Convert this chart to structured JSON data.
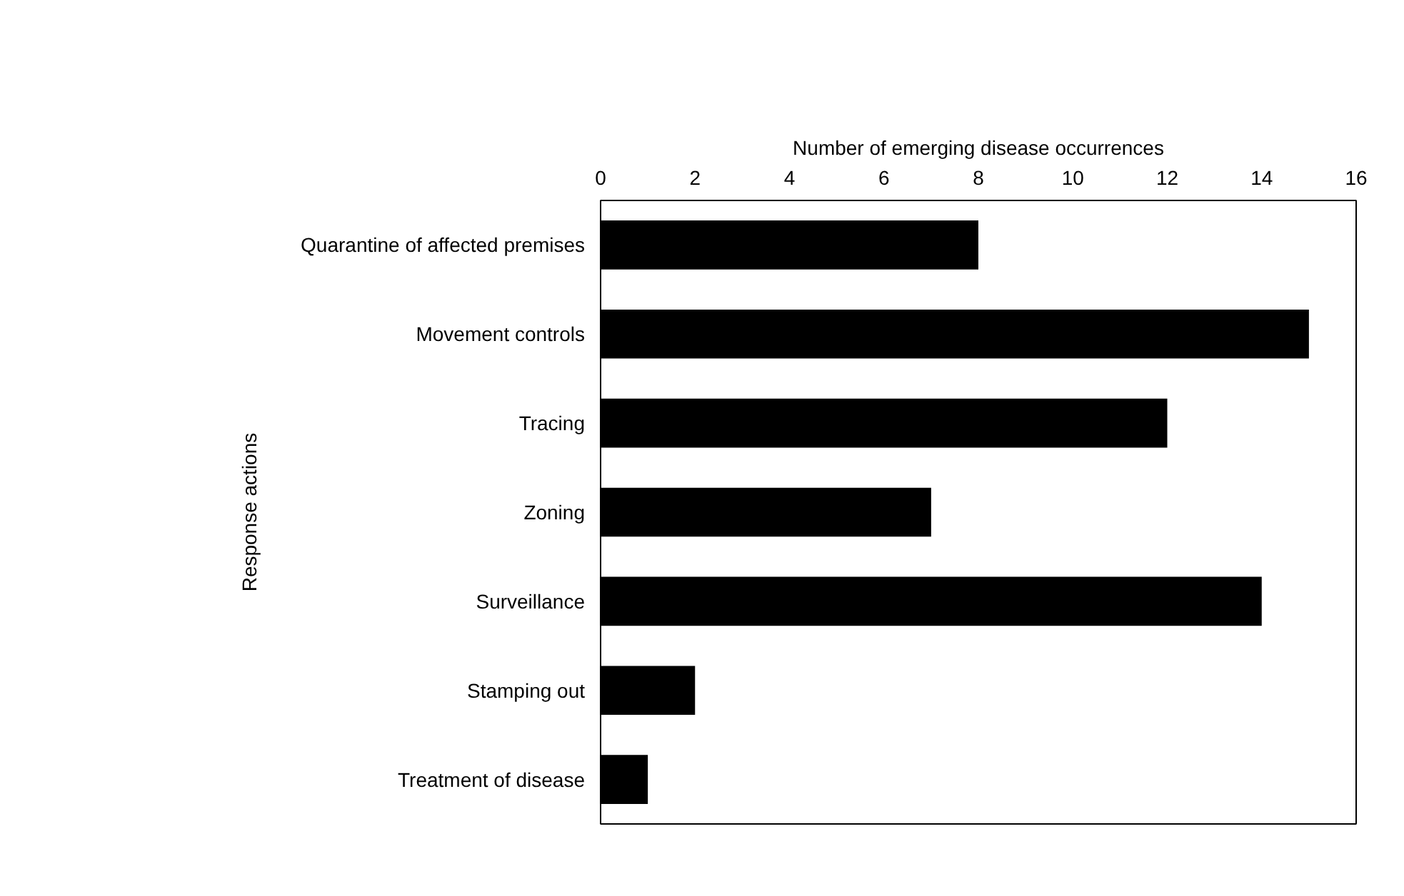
{
  "chart_data": {
    "type": "bar",
    "orientation": "horizontal",
    "xlabel": "Number of emerging disease occurrences",
    "ylabel": "Response actions",
    "categories": [
      "Quarantine of affected premises",
      "Movement controls",
      "Tracing",
      "Zoning",
      "Surveillance",
      "Stamping out",
      "Treatment of disease"
    ],
    "values": [
      8,
      15,
      12,
      7,
      14,
      2,
      1
    ],
    "color": "#000000",
    "xlim": [
      0,
      16
    ],
    "xticks": [
      0,
      2,
      4,
      6,
      8,
      10,
      12,
      14,
      16
    ],
    "grid": false
  }
}
